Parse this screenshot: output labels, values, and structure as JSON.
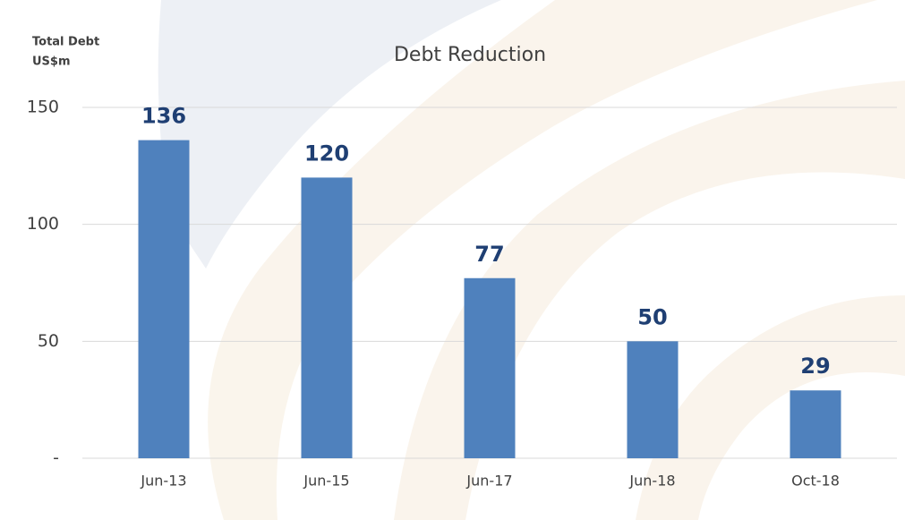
{
  "chart_data": {
    "type": "bar",
    "title": "Debt Reduction",
    "y_label_lines": [
      "Total Debt",
      "US$m"
    ],
    "categories": [
      "Jun-13",
      "Jun-15",
      "Jun-17",
      "Jun-18",
      "Oct-18"
    ],
    "values": [
      136,
      120,
      77,
      50,
      29
    ],
    "color": "#4f81bd",
    "ylim": [
      0,
      150
    ],
    "yticks": [
      {
        "value": 0,
        "label": "-"
      },
      50,
      100,
      150
    ],
    "grid": true
  }
}
